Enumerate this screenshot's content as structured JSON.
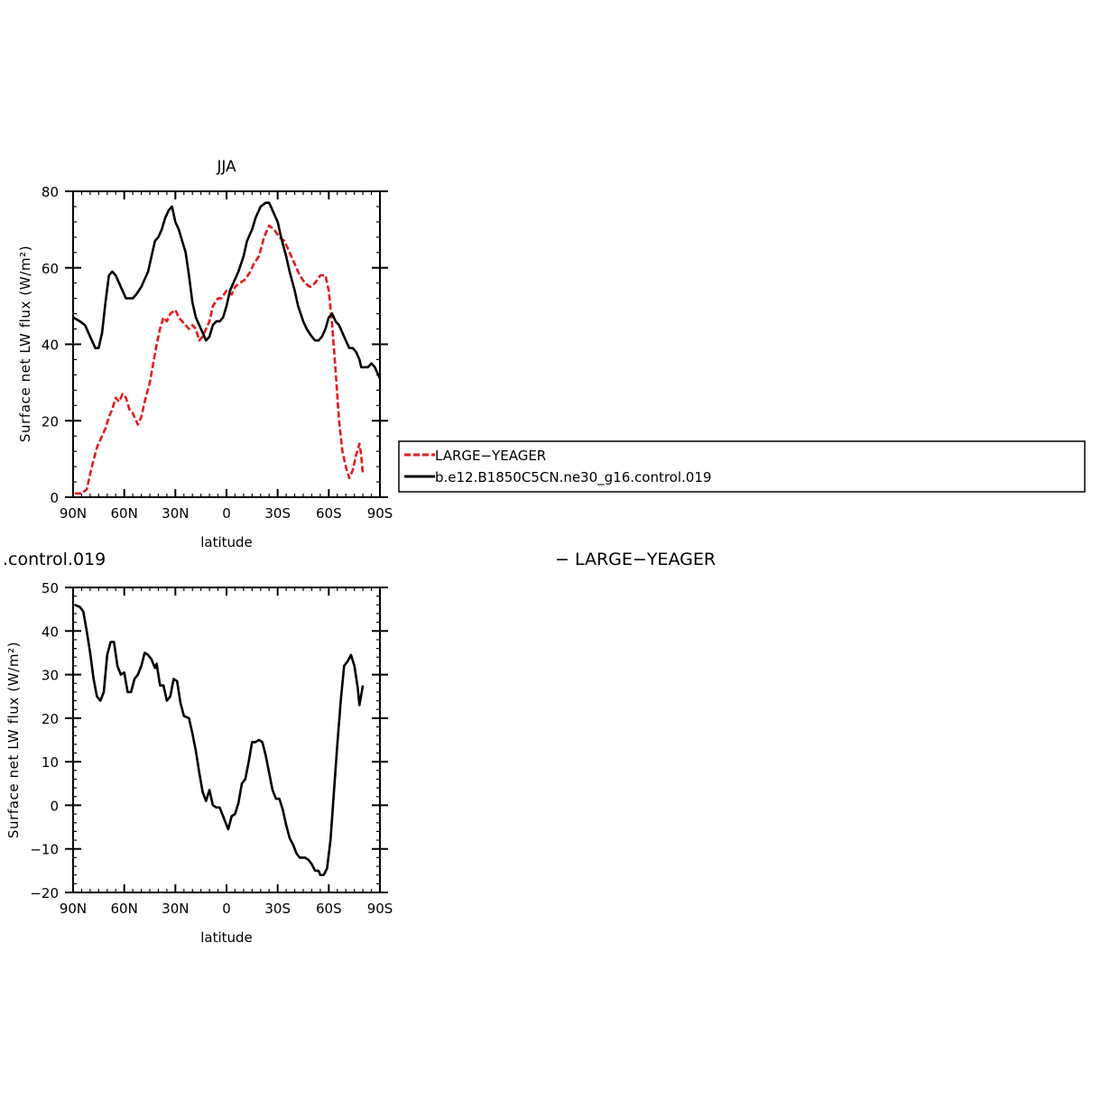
{
  "chart_data": [
    {
      "type": "line",
      "title": "JJA",
      "xlabel": "latitude",
      "ylabel": "Surface net LW flux (W/m²)",
      "xlim": [
        -90,
        90
      ],
      "ylim": [
        0,
        80
      ],
      "x_ticks": [
        -90,
        -60,
        -30,
        0,
        30,
        60,
        90
      ],
      "x_tick_labels": [
        "90N",
        "60N",
        "30N",
        "0",
        "30S",
        "60S",
        "90S"
      ],
      "y_ticks": [
        0,
        20,
        40,
        60,
        80
      ],
      "y_tick_labels": [
        "0",
        "20",
        "40",
        "60",
        "80"
      ],
      "legend": "right",
      "series": [
        {
          "name": "LARGE−YEAGER",
          "color": "#e41a1c",
          "dash": "dashed",
          "points": [
            [
              -89,
              1
            ],
            [
              -85,
              1
            ],
            [
              -82,
              2
            ],
            [
              -79,
              8
            ],
            [
              -76,
              13
            ],
            [
              -73,
              16
            ],
            [
              -71,
              18
            ],
            [
              -69,
              21
            ],
            [
              -67,
              23
            ],
            [
              -65,
              26
            ],
            [
              -63,
              25
            ],
            [
              -61,
              27
            ],
            [
              -59,
              26
            ],
            [
              -57,
              23
            ],
            [
              -55,
              22
            ],
            [
              -52,
              19
            ],
            [
              -50,
              21
            ],
            [
              -48,
              25
            ],
            [
              -45,
              30
            ],
            [
              -43,
              35
            ],
            [
              -41,
              40
            ],
            [
              -39,
              44
            ],
            [
              -37,
              47
            ],
            [
              -35,
              46
            ],
            [
              -33,
              48
            ],
            [
              -30,
              49
            ],
            [
              -28,
              47
            ],
            [
              -26,
              46
            ],
            [
              -24,
              45
            ],
            [
              -22,
              44
            ],
            [
              -20,
              45
            ],
            [
              -18,
              44
            ],
            [
              -16,
              41
            ],
            [
              -14,
              42
            ],
            [
              -12,
              44
            ],
            [
              -10,
              46
            ],
            [
              -8,
              50
            ],
            [
              -5,
              52
            ],
            [
              -3,
              52
            ],
            [
              0,
              54
            ],
            [
              3,
              53
            ],
            [
              5,
              55
            ],
            [
              8,
              56
            ],
            [
              11,
              57
            ],
            [
              14,
              59
            ],
            [
              16,
              61
            ],
            [
              19,
              63
            ],
            [
              22,
              68
            ],
            [
              25,
              71
            ],
            [
              28,
              70
            ],
            [
              31,
              68
            ],
            [
              34,
              67
            ],
            [
              37,
              64
            ],
            [
              40,
              61
            ],
            [
              43,
              58
            ],
            [
              46,
              56
            ],
            [
              49,
              55
            ],
            [
              52,
              56
            ],
            [
              55,
              58
            ],
            [
              58,
              58
            ],
            [
              60,
              54
            ],
            [
              62,
              45
            ],
            [
              64,
              33
            ],
            [
              66,
              20
            ],
            [
              68,
              12
            ],
            [
              70,
              8
            ],
            [
              72,
              5
            ],
            [
              74,
              7
            ],
            [
              76,
              11
            ],
            [
              78,
              14
            ],
            [
              79,
              11
            ],
            [
              80,
              6
            ]
          ]
        },
        {
          "name": "b.e12.B1850C5CN.ne30_g16.control.019",
          "color": "#000000",
          "dash": "solid",
          "points": [
            [
              -90,
              47
            ],
            [
              -86,
              46
            ],
            [
              -83,
              45
            ],
            [
              -81,
              43
            ],
            [
              -79,
              41
            ],
            [
              -77,
              39
            ],
            [
              -75,
              39
            ],
            [
              -73,
              43
            ],
            [
              -71,
              51
            ],
            [
              -69,
              58
            ],
            [
              -67,
              59
            ],
            [
              -65,
              58
            ],
            [
              -63,
              56
            ],
            [
              -61,
              54
            ],
            [
              -59,
              52
            ],
            [
              -57,
              52
            ],
            [
              -55,
              52
            ],
            [
              -53,
              53
            ],
            [
              -50,
              55
            ],
            [
              -48,
              57
            ],
            [
              -46,
              59
            ],
            [
              -44,
              63
            ],
            [
              -42,
              67
            ],
            [
              -40,
              68
            ],
            [
              -38,
              70
            ],
            [
              -36,
              73
            ],
            [
              -34,
              75
            ],
            [
              -32,
              76
            ],
            [
              -30,
              72
            ],
            [
              -28,
              70
            ],
            [
              -26,
              67
            ],
            [
              -24,
              64
            ],
            [
              -22,
              58
            ],
            [
              -20,
              51
            ],
            [
              -18,
              47
            ],
            [
              -16,
              45
            ],
            [
              -14,
              43
            ],
            [
              -12,
              41
            ],
            [
              -10,
              42
            ],
            [
              -8,
              45
            ],
            [
              -6,
              46
            ],
            [
              -4,
              46
            ],
            [
              -2,
              47
            ],
            [
              0,
              50
            ],
            [
              2,
              54
            ],
            [
              5,
              57
            ],
            [
              7,
              59
            ],
            [
              10,
              63
            ],
            [
              12,
              67
            ],
            [
              15,
              70
            ],
            [
              17,
              73
            ],
            [
              20,
              76
            ],
            [
              23,
              77
            ],
            [
              25,
              77
            ],
            [
              27,
              75
            ],
            [
              30,
              72
            ],
            [
              32,
              68
            ],
            [
              35,
              63
            ],
            [
              37,
              59
            ],
            [
              40,
              54
            ],
            [
              42,
              50
            ],
            [
              45,
              46
            ],
            [
              47,
              44
            ],
            [
              50,
              42
            ],
            [
              52,
              41
            ],
            [
              54,
              41
            ],
            [
              56,
              42
            ],
            [
              58,
              44
            ],
            [
              60,
              47
            ],
            [
              62,
              48
            ],
            [
              64,
              46
            ],
            [
              66,
              45
            ],
            [
              68,
              43
            ],
            [
              70,
              41
            ],
            [
              72,
              39
            ],
            [
              74,
              39
            ],
            [
              76,
              38
            ],
            [
              78,
              36
            ],
            [
              79,
              34
            ],
            [
              81,
              34
            ],
            [
              83,
              34
            ],
            [
              85,
              35
            ],
            [
              87,
              34
            ],
            [
              89,
              32
            ],
            [
              90,
              31
            ]
          ]
        }
      ]
    },
    {
      "type": "line",
      "title": ".control.019",
      "title_right": "− LARGE−YEAGER",
      "xlabel": "latitude",
      "ylabel": "Surface net LW flux (W/m²)",
      "xlim": [
        -90,
        90
      ],
      "ylim": [
        -20,
        50
      ],
      "x_ticks": [
        -90,
        -60,
        -30,
        0,
        30,
        60,
        90
      ],
      "x_tick_labels": [
        "90N",
        "60N",
        "30N",
        "0",
        "30S",
        "60S",
        "90S"
      ],
      "y_ticks": [
        -20,
        -10,
        0,
        10,
        20,
        30,
        40,
        50
      ],
      "y_tick_labels": [
        "−20",
        "−10",
        "0",
        "10",
        "20",
        "30",
        "40",
        "50"
      ],
      "series": [
        {
          "color": "#000000",
          "dash": "solid",
          "points": [
            [
              -89,
              46
            ],
            [
              -86,
              45.5
            ],
            [
              -84,
              44.5
            ],
            [
              -82,
              40
            ],
            [
              -80,
              35
            ],
            [
              -78,
              29
            ],
            [
              -76,
              25
            ],
            [
              -74,
              24
            ],
            [
              -72,
              26
            ],
            [
              -70,
              34.5
            ],
            [
              -68,
              37.5
            ],
            [
              -66,
              37.5
            ],
            [
              -64,
              32
            ],
            [
              -62,
              30
            ],
            [
              -60,
              30.5
            ],
            [
              -58,
              26
            ],
            [
              -56,
              26
            ],
            [
              -54,
              29
            ],
            [
              -52,
              30
            ],
            [
              -50,
              32
            ],
            [
              -48,
              35
            ],
            [
              -46,
              34.5
            ],
            [
              -44,
              33.5
            ],
            [
              -42,
              31.5
            ],
            [
              -41,
              32.5
            ],
            [
              -39,
              27.5
            ],
            [
              -37,
              27.5
            ],
            [
              -35,
              24
            ],
            [
              -33,
              25
            ],
            [
              -31,
              29
            ],
            [
              -29,
              28.5
            ],
            [
              -27,
              23.5
            ],
            [
              -25,
              20.5
            ],
            [
              -22,
              20
            ],
            [
              -20,
              16.5
            ],
            [
              -18,
              12.5
            ],
            [
              -16,
              7.5
            ],
            [
              -14,
              3
            ],
            [
              -12,
              1
            ],
            [
              -10,
              3.5
            ],
            [
              -8,
              0
            ],
            [
              -6,
              -0.5
            ],
            [
              -4,
              -0.5
            ],
            [
              -2,
              -2.5
            ],
            [
              0,
              -4.5
            ],
            [
              1,
              -5.5
            ],
            [
              3,
              -2.5
            ],
            [
              5,
              -2
            ],
            [
              7,
              0.5
            ],
            [
              9,
              5
            ],
            [
              11,
              6
            ],
            [
              13,
              10
            ],
            [
              15,
              14.5
            ],
            [
              17,
              14.5
            ],
            [
              19,
              15
            ],
            [
              21,
              14.5
            ],
            [
              23,
              11.5
            ],
            [
              25,
              7.5
            ],
            [
              27,
              3.5
            ],
            [
              29,
              1.5
            ],
            [
              31,
              1.5
            ],
            [
              33,
              -1
            ],
            [
              35,
              -4.5
            ],
            [
              37,
              -7.5
            ],
            [
              39,
              -9
            ],
            [
              41,
              -11
            ],
            [
              43,
              -12
            ],
            [
              46,
              -12
            ],
            [
              48,
              -12.5
            ],
            [
              50,
              -13.5
            ],
            [
              52,
              -15
            ],
            [
              54,
              -15
            ],
            [
              55,
              -16
            ],
            [
              57,
              -16
            ],
            [
              59,
              -14.5
            ],
            [
              61,
              -8
            ],
            [
              63,
              3
            ],
            [
              65,
              14
            ],
            [
              67,
              24
            ],
            [
              69,
              32
            ],
            [
              71,
              33
            ],
            [
              73,
              34.5
            ],
            [
              75,
              32
            ],
            [
              77,
              27
            ],
            [
              78,
              23
            ],
            [
              80,
              27.5
            ]
          ]
        }
      ]
    }
  ]
}
